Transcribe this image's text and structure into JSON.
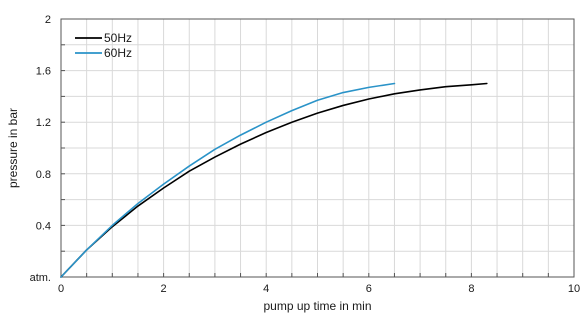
{
  "chart_data": {
    "type": "line",
    "xlabel": "pump up time in min",
    "ylabel": "pressure in bar",
    "xlim": [
      0,
      10
    ],
    "ylim": [
      0,
      2
    ],
    "x_ticks": [
      {
        "value": 0,
        "label": "0"
      },
      {
        "value": 2,
        "label": "2"
      },
      {
        "value": 4,
        "label": "4"
      },
      {
        "value": 6,
        "label": "6"
      },
      {
        "value": 8,
        "label": "8"
      },
      {
        "value": 10,
        "label": "10"
      }
    ],
    "y_ticks": [
      {
        "value": 0,
        "label": "atm."
      },
      {
        "value": 0.4,
        "label": "0.4"
      },
      {
        "value": 0.8,
        "label": "0.8"
      },
      {
        "value": 1.2,
        "label": "1.2"
      },
      {
        "value": 1.6,
        "label": "1.6"
      },
      {
        "value": 2.0,
        "label": "2"
      }
    ],
    "x_minor_step": 0.5,
    "y_minor_step": 0.2,
    "grid": true,
    "legend": "top-left",
    "series": [
      {
        "name": "50Hz",
        "color": "#000000",
        "x": [
          0,
          0.5,
          1,
          1.5,
          2,
          2.5,
          3,
          3.5,
          4,
          4.5,
          5,
          5.5,
          6,
          6.5,
          7,
          7.5,
          8,
          8.3
        ],
        "y": [
          0,
          0.21,
          0.39,
          0.55,
          0.69,
          0.82,
          0.93,
          1.03,
          1.12,
          1.2,
          1.27,
          1.33,
          1.38,
          1.42,
          1.45,
          1.475,
          1.49,
          1.5
        ]
      },
      {
        "name": "60Hz",
        "color": "#2a93c8",
        "x": [
          0,
          0.5,
          1,
          1.5,
          2,
          2.5,
          3,
          3.5,
          4,
          4.5,
          5,
          5.5,
          6,
          6.5
        ],
        "y": [
          0,
          0.21,
          0.4,
          0.57,
          0.72,
          0.86,
          0.99,
          1.1,
          1.2,
          1.29,
          1.37,
          1.43,
          1.47,
          1.5
        ]
      }
    ]
  }
}
